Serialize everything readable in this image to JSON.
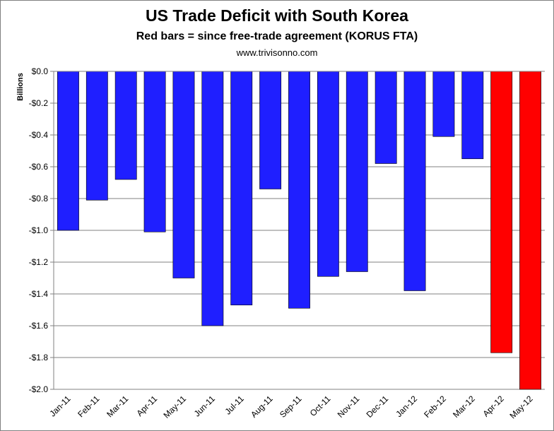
{
  "header": {
    "title": "US Trade Deficit with South Korea",
    "subtitle": "Red bars = since free-trade agreement (KORUS FTA)",
    "source": "www.trivisonno.com"
  },
  "colors": {
    "pre_fta": "#1f1fff",
    "post_fta": "#ff0000",
    "gridline": "#808080",
    "axis": "#808080"
  },
  "chart_data": {
    "type": "bar",
    "title": "US Trade Deficit with South Korea",
    "subtitle": "Red bars = since free-trade agreement (KORUS FTA)",
    "xlabel": "",
    "ylabel": "Billions",
    "ylim": [
      -2.0,
      0.0
    ],
    "yticks": [
      0.0,
      -0.2,
      -0.4,
      -0.6,
      -0.8,
      -1.0,
      -1.2,
      -1.4,
      -1.6,
      -1.8,
      -2.0
    ],
    "ytick_labels": [
      "$0.0",
      "-$0.2",
      "-$0.4",
      "-$0.6",
      "-$0.8",
      "-$1.0",
      "-$1.2",
      "-$1.4",
      "-$1.6",
      "-$1.8",
      "-$2.0"
    ],
    "grid": true,
    "legend": "none",
    "categories": [
      "Jan-11",
      "Feb-11",
      "Mar-11",
      "Apr-11",
      "May-11",
      "Jun-11",
      "Jul-11",
      "Aug-11",
      "Sep-11",
      "Oct-11",
      "Nov-11",
      "Dec-11",
      "Jan-12",
      "Feb-12",
      "Mar-12",
      "Apr-12",
      "May-12"
    ],
    "values": [
      -1.0,
      -0.81,
      -0.68,
      -1.01,
      -1.3,
      -1.6,
      -1.47,
      -0.74,
      -1.49,
      -1.29,
      -1.26,
      -0.58,
      -1.38,
      -0.41,
      -0.55,
      -1.77,
      -2.0
    ],
    "bar_colors": [
      "#1f1fff",
      "#1f1fff",
      "#1f1fff",
      "#1f1fff",
      "#1f1fff",
      "#1f1fff",
      "#1f1fff",
      "#1f1fff",
      "#1f1fff",
      "#1f1fff",
      "#1f1fff",
      "#1f1fff",
      "#1f1fff",
      "#1f1fff",
      "#1f1fff",
      "#ff0000",
      "#ff0000"
    ]
  }
}
